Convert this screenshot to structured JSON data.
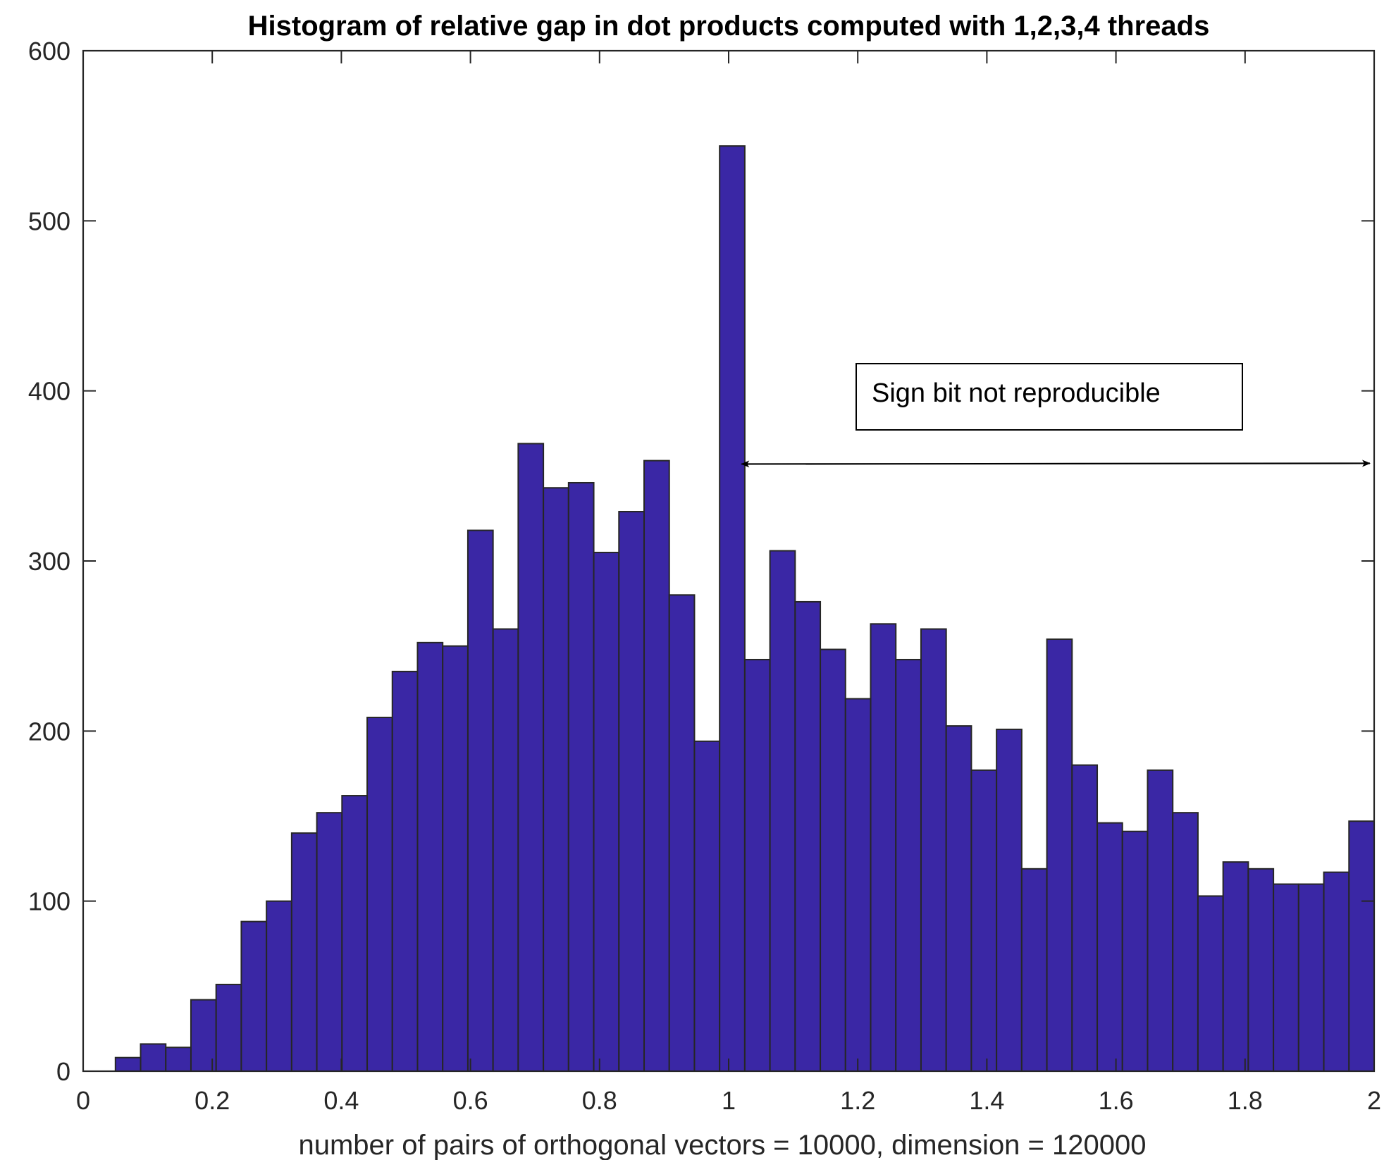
{
  "chart_data": {
    "type": "bar",
    "title": "Histogram of relative gap in dot products computed with 1,2,3,4 threads",
    "xlabel": "number of pairs of orthogonal vectors = 10000,   dimension = 120000",
    "ylabel": "",
    "xlim": [
      0,
      2
    ],
    "ylim": [
      0,
      600
    ],
    "xticks": [
      0,
      0.2,
      0.4,
      0.6,
      0.8,
      1,
      1.2,
      1.4,
      1.6,
      1.8,
      2
    ],
    "xtick_labels": [
      "0",
      "0.2",
      "0.4",
      "0.6",
      "0.8",
      "1",
      "1.2",
      "1.4",
      "1.6",
      "1.8",
      "2"
    ],
    "yticks": [
      0,
      100,
      200,
      300,
      400,
      500,
      600
    ],
    "ytick_labels": [
      "0",
      "100",
      "200",
      "300",
      "400",
      "500",
      "600"
    ],
    "bin_edges": [
      0.05,
      0.089,
      0.128,
      0.167,
      0.206,
      0.245,
      0.284,
      0.323,
      0.362,
      0.401,
      0.44,
      0.479,
      0.518,
      0.557,
      0.596,
      0.635,
      0.674,
      0.713,
      0.752,
      0.791,
      0.83,
      0.869,
      0.908,
      0.947,
      0.986,
      1.025,
      1.064,
      1.103,
      1.142,
      1.181,
      1.22,
      1.259,
      1.298,
      1.337,
      1.376,
      1.415,
      1.454,
      1.493,
      1.532,
      1.571,
      1.61,
      1.649,
      1.688,
      1.727,
      1.766,
      1.805,
      1.844,
      1.883,
      1.922,
      1.961,
      2.0
    ],
    "values": [
      8,
      16,
      14,
      42,
      51,
      88,
      100,
      140,
      152,
      162,
      208,
      235,
      252,
      250,
      318,
      260,
      369,
      343,
      346,
      305,
      329,
      359,
      280,
      194,
      544,
      242,
      306,
      276,
      248,
      219,
      263,
      242,
      260,
      203,
      177,
      201,
      119,
      254,
      180,
      146,
      141,
      177,
      152,
      103,
      123,
      119,
      110,
      110,
      117,
      147
    ],
    "bar_color": "#3a27a5",
    "grid": false,
    "annotation": {
      "text": "Sign bit not reproducible",
      "arrow_from_x": 1.02,
      "arrow_to_x": 2.0,
      "arrow_y": 357
    }
  }
}
